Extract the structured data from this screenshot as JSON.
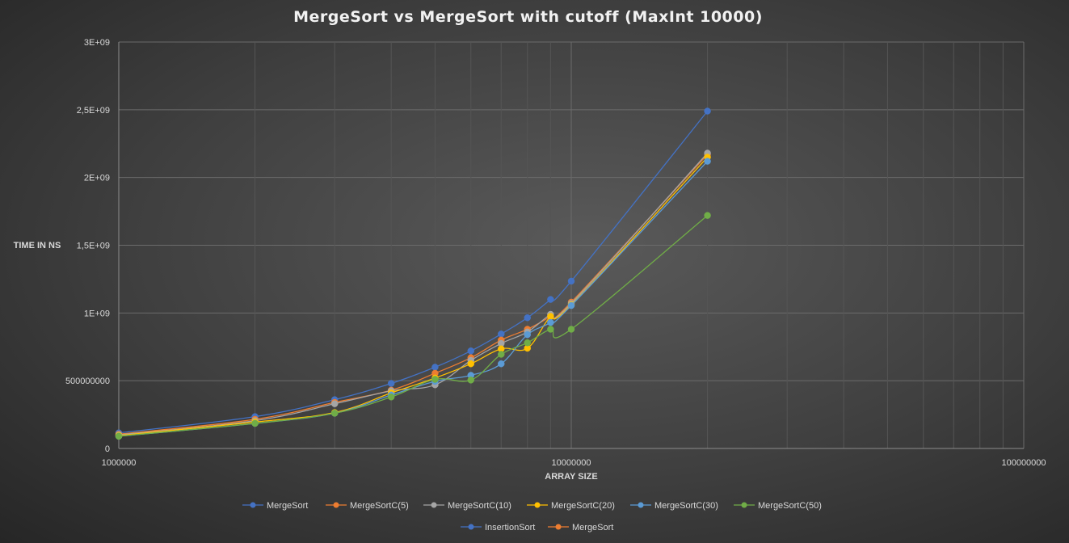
{
  "chart_data": {
    "type": "scatter",
    "title": "MergeSort  vs MergeSort  with  cutoff  (MaxInt  10000)",
    "xlabel": "ARRAY SIZE",
    "ylabel": "TIME IN NS",
    "x_scale": "log",
    "xlim": [
      1000000,
      100000000
    ],
    "ylim": [
      0,
      3000000000
    ],
    "x_ticks": [
      1000000,
      10000000,
      100000000
    ],
    "x_tick_labels": [
      "1000000",
      "10000000",
      "100000000"
    ],
    "y_ticks": [
      0,
      500000000,
      1000000000,
      1500000000,
      2000000000,
      2500000000,
      3000000000
    ],
    "y_tick_labels": [
      "0",
      "500000000",
      "1E+09",
      "1,5E+09",
      "2E+09",
      "2,5E+09",
      "3E+09"
    ],
    "grid": true,
    "legend_position": "bottom",
    "x": [
      1000000,
      2000000,
      3000000,
      4000000,
      5000000,
      6000000,
      7000000,
      8000000,
      9000000,
      10000000,
      20000000
    ],
    "series": [
      {
        "name": "MergeSort",
        "color": "#4472c4",
        "values": [
          115000000,
          235000000,
          360000000,
          480000000,
          600000000,
          720000000,
          845000000,
          965000000,
          1100000000,
          1235000000,
          2490000000
        ]
      },
      {
        "name": "MergeSortC(5)",
        "color": "#ed7d31",
        "values": [
          105000000,
          215000000,
          340000000,
          430000000,
          555000000,
          670000000,
          800000000,
          880000000,
          975000000,
          1080000000,
          2170000000
        ]
      },
      {
        "name": "MergeSortC(10)",
        "color": "#a5a5a5",
        "values": [
          100000000,
          205000000,
          330000000,
          425000000,
          470000000,
          650000000,
          775000000,
          860000000,
          990000000,
          1070000000,
          2180000000
        ]
      },
      {
        "name": "MergeSortC(20)",
        "color": "#ffc000",
        "values": [
          95000000,
          195000000,
          265000000,
          410000000,
          520000000,
          625000000,
          735000000,
          740000000,
          975000000,
          1060000000,
          2150000000
        ]
      },
      {
        "name": "MergeSortC(30)",
        "color": "#5b9bd5",
        "values": [
          90000000,
          185000000,
          260000000,
          395000000,
          495000000,
          540000000,
          625000000,
          840000000,
          930000000,
          1055000000,
          2120000000
        ]
      },
      {
        "name": "MergeSortC(50)",
        "color": "#70ad47",
        "values": [
          90000000,
          185000000,
          260000000,
          380000000,
          510000000,
          505000000,
          695000000,
          780000000,
          880000000,
          880000000,
          1720000000
        ]
      }
    ],
    "legend_extra": [
      {
        "name": "InsertionSort",
        "color": "#4472c4"
      },
      {
        "name": "MergeSort",
        "color": "#ed7d31"
      }
    ]
  }
}
